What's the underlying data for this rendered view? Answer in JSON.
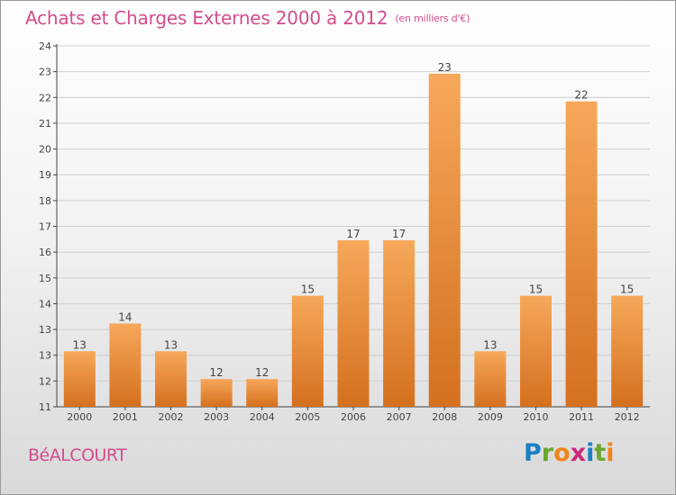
{
  "title": "Achats et Charges Externes 2000 à 2012",
  "unit": "(en milliers d'€)",
  "town": "BéALCOURT",
  "logo": {
    "text": "Proxiti",
    "letters": [
      {
        "ch": "P",
        "color": "#1a80c4"
      },
      {
        "ch": "r",
        "color": "#6aa72e"
      },
      {
        "ch": "o",
        "color": "#f0861b"
      },
      {
        "ch": "x",
        "color": "#cc2a7d"
      },
      {
        "ch": "i",
        "color": "#1a80c4"
      },
      {
        "ch": "t",
        "color": "#6aa72e"
      },
      {
        "ch": "i",
        "color": "#f0861b"
      }
    ]
  },
  "colors": {
    "text": "#d34c8d",
    "bar_light": "#f6a85a",
    "bar_dark": "#d4701e",
    "grid": "#cfcfcf",
    "axis": "#444444"
  },
  "chart_data": {
    "type": "bar",
    "categories": [
      "2000",
      "2001",
      "2002",
      "2003",
      "2004",
      "2005",
      "2006",
      "2007",
      "2008",
      "2009",
      "2010",
      "2011",
      "2012"
    ],
    "values": [
      13,
      14,
      13,
      12,
      12,
      15,
      17,
      17,
      23,
      13,
      15,
      22,
      15
    ],
    "data_labels": [
      "13",
      "14",
      "13",
      "12",
      "12",
      "15",
      "17",
      "17",
      "23",
      "13",
      "15",
      "22",
      "15"
    ],
    "ylim": [
      11,
      24
    ],
    "yticks": [
      "11",
      "12",
      "13",
      "13",
      "14",
      "15",
      "16",
      "17",
      "18",
      "19",
      "20",
      "21",
      "22",
      "23",
      "24"
    ],
    "grid": true,
    "legend": "none"
  }
}
